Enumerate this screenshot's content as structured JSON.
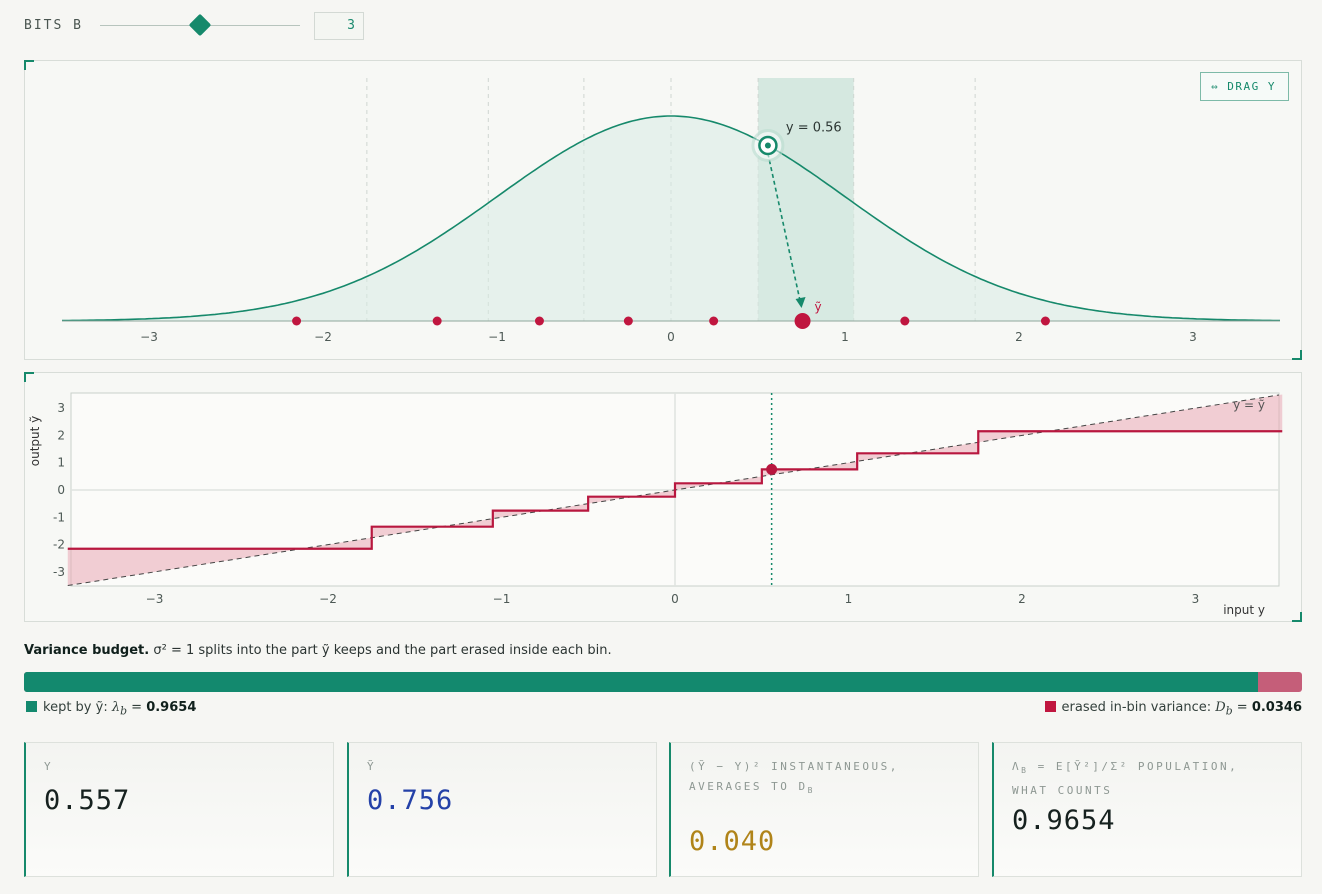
{
  "controls": {
    "bits_label": "BITS B",
    "bits_value": "3"
  },
  "top_panel": {
    "drag_button": "⇔ DRAG Y",
    "point_label": "y = 0.56",
    "quantized_label": "ỹ",
    "x_ticks": [
      "−3",
      "−2",
      "−1",
      "0",
      "1",
      "2",
      "3"
    ],
    "selected_bin": [
      0.5006,
      1.05
    ],
    "bin_edges": [
      -1.7479,
      -1.05,
      -0.5006,
      0.0,
      0.5006,
      1.05,
      1.7479
    ],
    "levels": [
      -2.1519,
      -1.3439,
      -0.756,
      -0.2451,
      0.2451,
      0.756,
      1.3439,
      2.1519
    ],
    "y_input": 0.557,
    "y_quantized": 0.756,
    "curve_color": "#16896b",
    "level_dot_color": "#c0163f"
  },
  "bottom_panel": {
    "ylabel": "output ỹ",
    "xlabel": "input y",
    "identity_label": "y = ỹ",
    "x_ticks": [
      "−3",
      "−2",
      "−1",
      "0",
      "1",
      "2",
      "3"
    ],
    "y_ticks": [
      "3",
      "2",
      "1",
      "0",
      "-1",
      "-2",
      "-3"
    ],
    "step_color": "#b8173f"
  },
  "variance": {
    "title": "Variance budget.",
    "subtitle": "σ² = 1 splits into the part ỹ keeps and the part erased inside each bin.",
    "kept_fraction": 0.9654,
    "kept_label": "kept by ỹ:",
    "kept_symbol": "λ",
    "kept_sub": "b",
    "kept_value": "0.9654",
    "erased_label": "erased in-bin variance:",
    "erased_symbol": "D",
    "erased_sub": "b",
    "erased_value": "0.0346",
    "kept_color": "#13896e",
    "erased_color": "#c55e79"
  },
  "cards": [
    {
      "label": "Y",
      "value": "0.557",
      "color": "#16211f"
    },
    {
      "label": "Ỹ",
      "value": "0.756",
      "color": "#2441a8"
    },
    {
      "label": "(Ỹ − Y)² INSTANTANEOUS, AVERAGES TO D",
      "label_sub": "B",
      "value": "0.040",
      "color": "#b08419"
    },
    {
      "label": "Λ",
      "label_sub": "B",
      "label_rest": " = E[Ỹ²]/Σ² POPULATION, WHAT COUNTS",
      "value": "0.9654",
      "color": "#16211f"
    }
  ]
}
